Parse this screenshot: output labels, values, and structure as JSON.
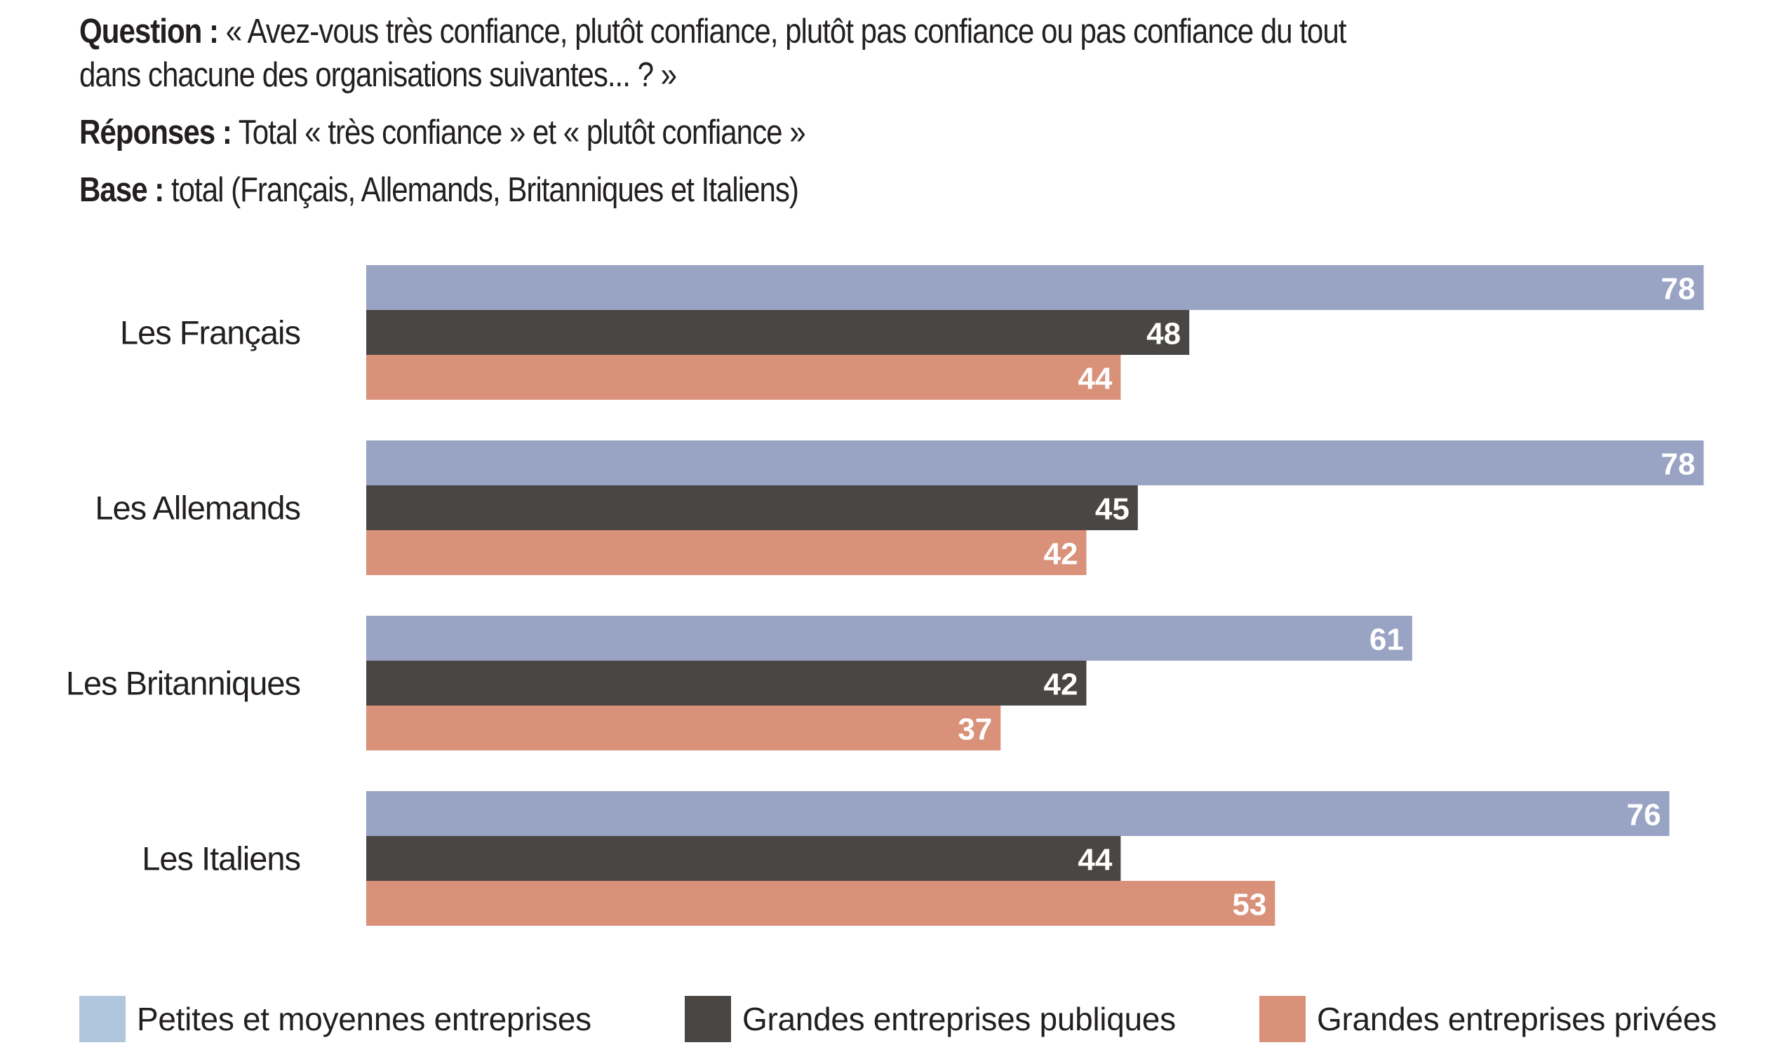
{
  "header": {
    "question_label": "Question :",
    "question_line1": "« Avez-vous très confiance, plutôt confiance, plutôt pas confiance ou pas confiance du tout",
    "question_line2": "dans chacune des organisations suivantes... ? »",
    "responses_label": "Réponses :",
    "responses_text": "Total « très confiance » et « plutôt confiance »",
    "base_label": "Base :",
    "base_text": "total (Français, Allemands, Britanniques et Italiens)"
  },
  "chart_data": {
    "type": "bar",
    "orientation": "horizontal",
    "title": "",
    "xlabel": "",
    "ylabel": "",
    "xlim": [
      0,
      100
    ],
    "grid": false,
    "legend_position": "bottom",
    "categories": [
      "Les Français",
      "Les Allemands",
      "Les Britanniques",
      "Les Italiens"
    ],
    "series": [
      {
        "name": "Petites et moyennes entreprises",
        "color": "#99a3c4",
        "legend_color": "#b0c6dc",
        "label_color": "#ffffff",
        "values": [
          78,
          78,
          61,
          76
        ]
      },
      {
        "name": "Grandes entreprises publiques",
        "color": "#4a4643",
        "legend_color": "#4a4643",
        "label_color": "#ffffff",
        "values": [
          48,
          45,
          42,
          44
        ]
      },
      {
        "name": "Grandes entreprises privées",
        "color": "#d9917a",
        "legend_color": "#d9917a",
        "label_color": "#ffffff",
        "values": [
          44,
          42,
          37,
          53
        ]
      }
    ]
  }
}
